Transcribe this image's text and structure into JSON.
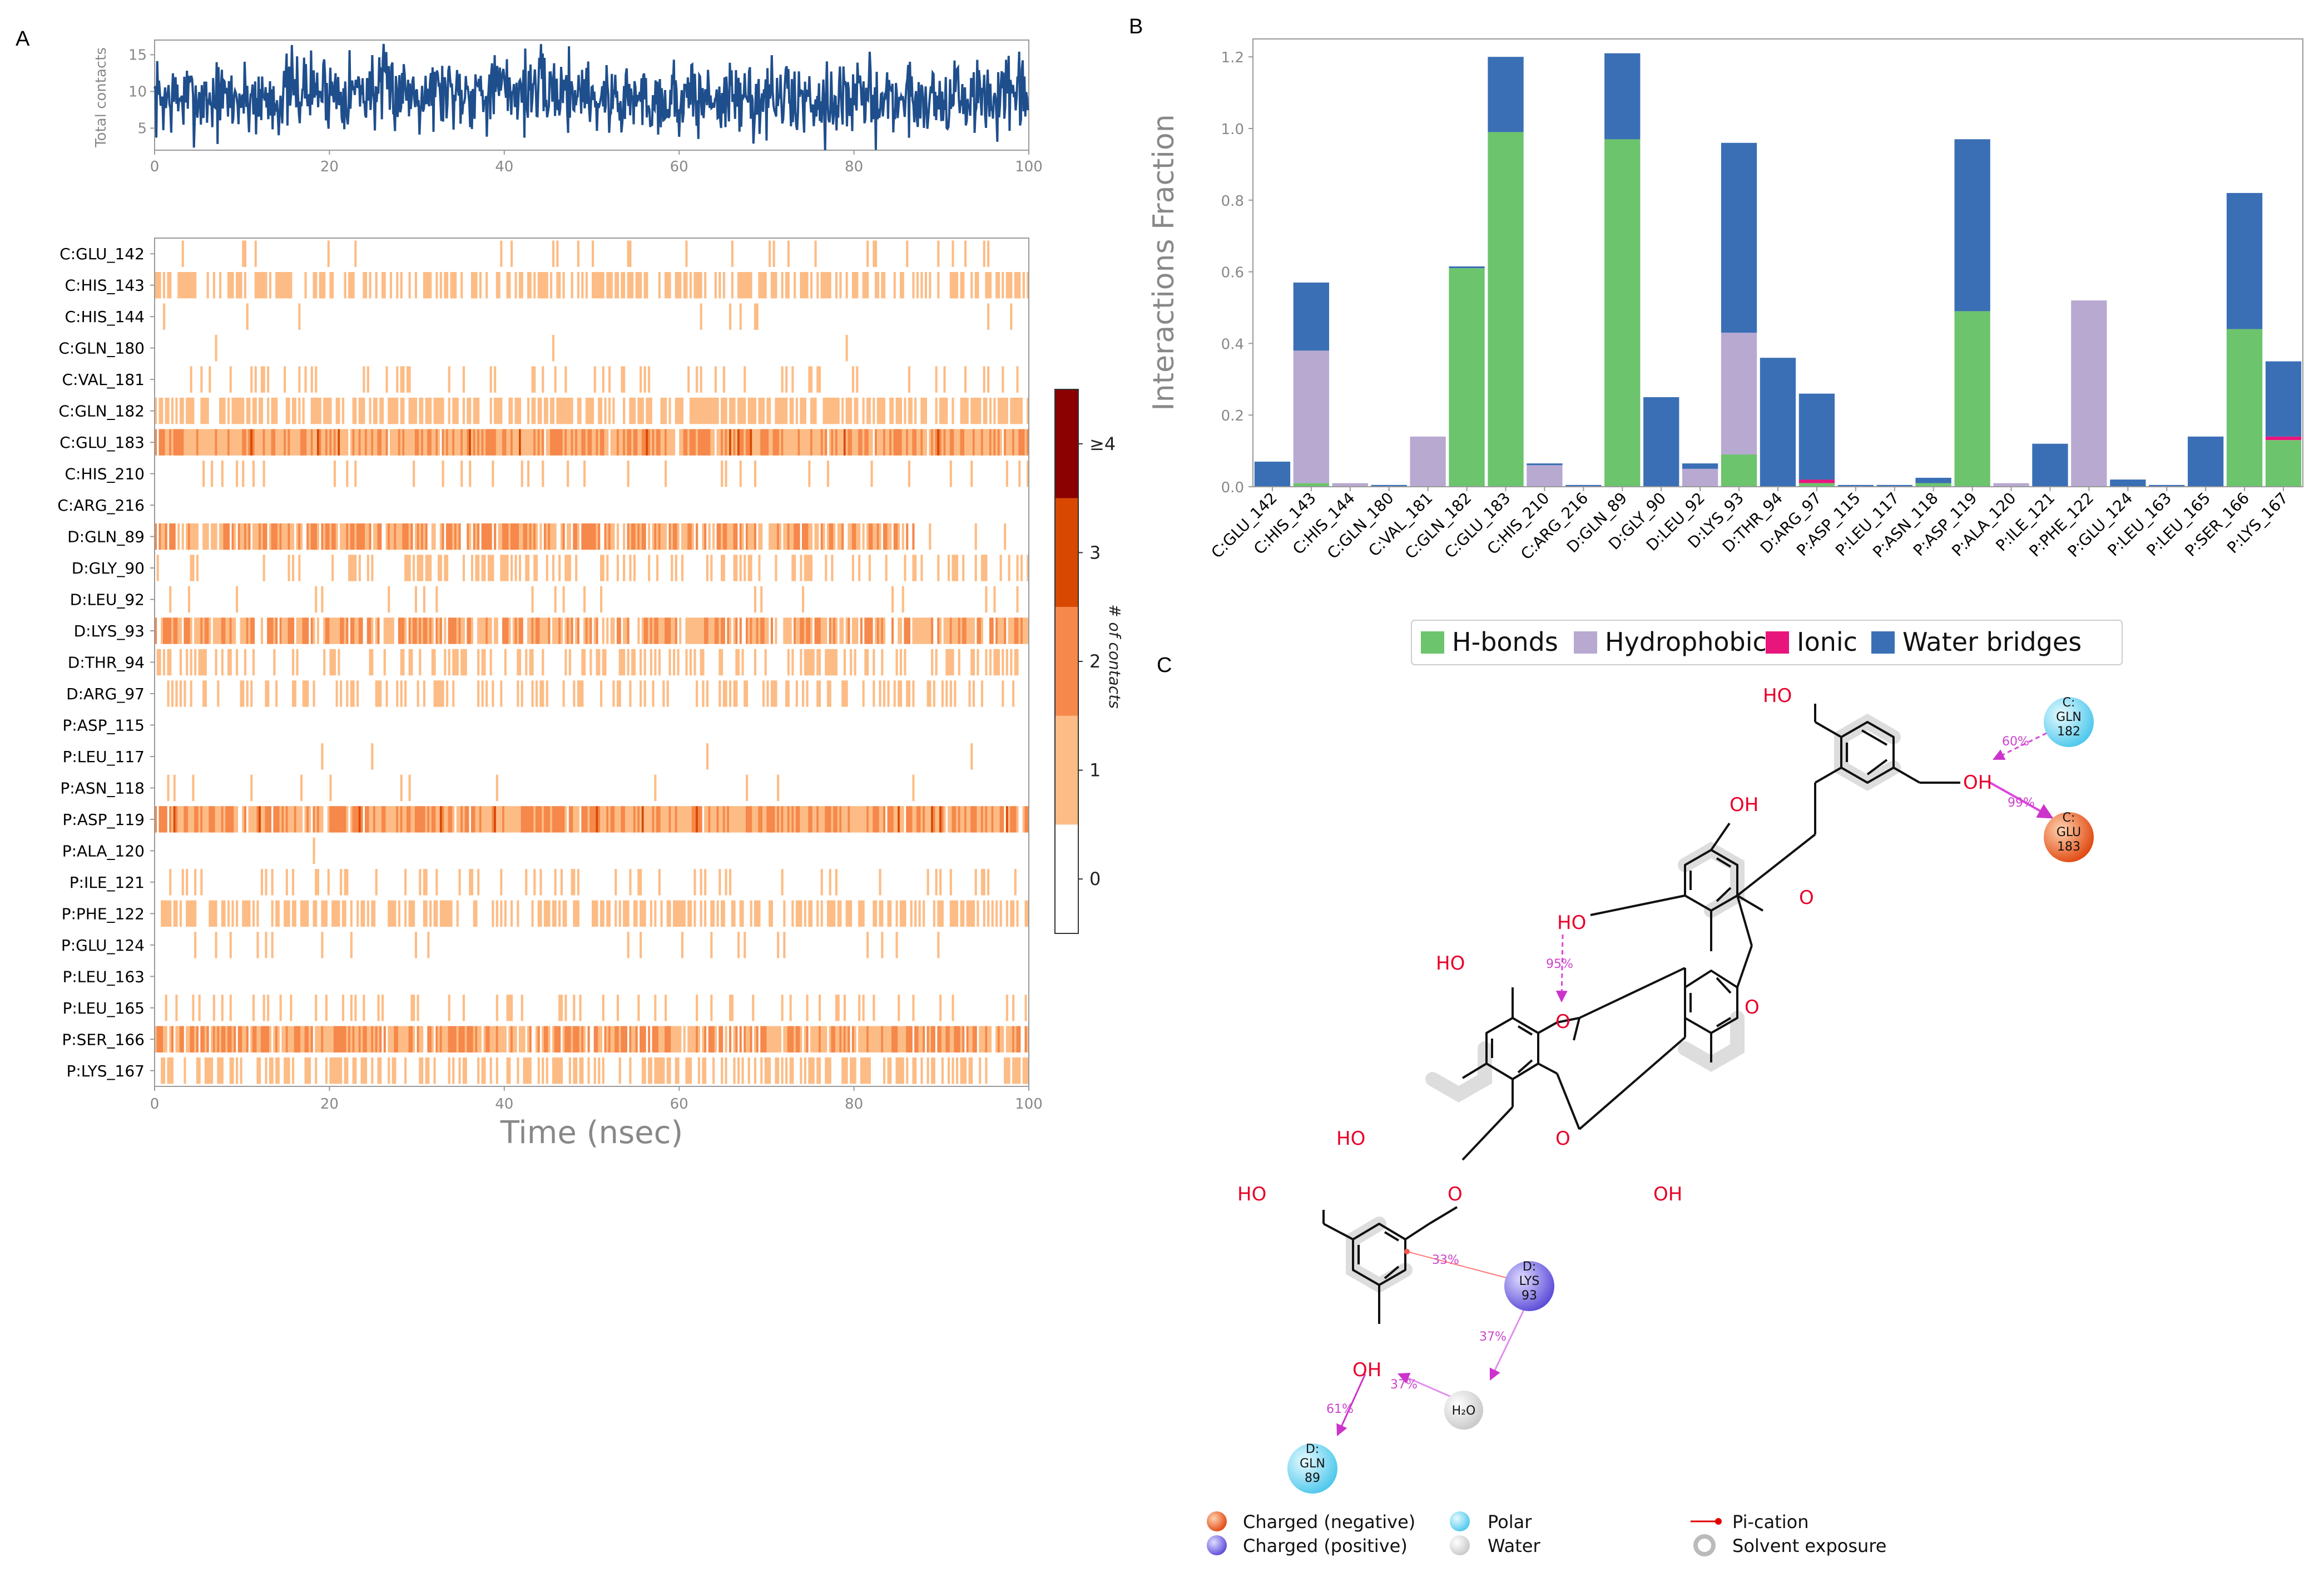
{
  "panels": {
    "a": "A",
    "b": "B",
    "c": "C"
  },
  "colors": {
    "line": "#1f4e8c",
    "hbonds": "#6cc46c",
    "hydrophobic": "#b8a9d1",
    "ionic": "#e8157d",
    "water": "#3a6fb5",
    "heat": [
      "#ffffff",
      "#fdbc85",
      "#f5884a",
      "#d94801",
      "#8b0000"
    ]
  },
  "chart_data": [
    {
      "type": "line",
      "title": "",
      "ylabel": "Total contacts",
      "xlim": [
        0,
        100
      ],
      "ylim": [
        2,
        17
      ],
      "xticks": [
        "0",
        "20",
        "40",
        "60",
        "80",
        "100"
      ],
      "yticks": [
        "5",
        "10",
        "15"
      ],
      "trace": {
        "mean": 9,
        "min": 2,
        "max": 17
      }
    },
    {
      "type": "heatmap",
      "xlabel": "Time (nsec)",
      "xlim": [
        0,
        100
      ],
      "xticks": [
        "0",
        "20",
        "40",
        "60",
        "80",
        "100"
      ],
      "residues": [
        "C:GLU_142",
        "C:HIS_143",
        "C:HIS_144",
        "C:GLN_180",
        "C:VAL_181",
        "C:GLN_182",
        "C:GLU_183",
        "C:HIS_210",
        "C:ARG_216",
        "D:GLN_89",
        "D:GLY_90",
        "D:LEU_92",
        "D:LYS_93",
        "D:THR_94",
        "D:ARG_97",
        "P:ASP_115",
        "P:LEU_117",
        "P:ASN_118",
        "P:ASP_119",
        "P:ALA_120",
        "P:ILE_121",
        "P:PHE_122",
        "P:GLU_124",
        "P:LEU_163",
        "P:LEU_165",
        "P:SER_166",
        "P:LYS_167"
      ],
      "occupancy": [
        0.08,
        0.5,
        0.02,
        0.01,
        0.15,
        0.6,
        0.98,
        0.07,
        0.0,
        0.75,
        0.3,
        0.07,
        0.8,
        0.35,
        0.3,
        0.0,
        0.01,
        0.04,
        0.95,
        0.01,
        0.15,
        0.5,
        0.06,
        0.0,
        0.15,
        0.85,
        0.45
      ],
      "colorbar": {
        "label": "# of contacts",
        "ticks": [
          "0",
          "1",
          "2",
          "3",
          "≥4"
        ]
      }
    },
    {
      "type": "bar",
      "stacked": true,
      "ylabel": "Interactions Fraction",
      "ylim": [
        0,
        1.25
      ],
      "yticks": [
        "0.0",
        "0.2",
        "0.4",
        "0.6",
        "0.8",
        "1.0",
        "1.2"
      ],
      "categories": [
        "C:GLU_142",
        "C:HIS_143",
        "C:HIS_144",
        "C:GLN_180",
        "C:VAL_181",
        "C:GLN_182",
        "C:GLU_183",
        "C:HIS_210",
        "C:ARG_216",
        "D:GLN_89",
        "D:GLY_90",
        "D:LEU_92",
        "D:LYS_93",
        "D:THR_94",
        "D:ARG_97",
        "P:ASP_115",
        "P:LEU_117",
        "P:ASN_118",
        "P:ASP_119",
        "P:ALA_120",
        "P:ILE_121",
        "P:PHE_122",
        "P:GLU_124",
        "P:LEU_163",
        "P:LEU_165",
        "P:SER_166",
        "P:LYS_167"
      ],
      "series": [
        {
          "name": "H-bonds",
          "values": [
            0,
            0.01,
            0,
            0,
            0,
            0.61,
            0.99,
            0,
            0,
            0.97,
            0,
            0,
            0.09,
            0,
            0.01,
            0,
            0,
            0.01,
            0.49,
            0,
            0,
            0,
            0,
            0,
            0,
            0.44,
            0.13
          ]
        },
        {
          "name": "Hydrophobic",
          "values": [
            0,
            0.37,
            0.01,
            0,
            0.14,
            0,
            0,
            0.06,
            0,
            0,
            0,
            0.05,
            0.34,
            0,
            0,
            0,
            0,
            0,
            0,
            0.01,
            0,
            0.52,
            0,
            0,
            0,
            0,
            0
          ]
        },
        {
          "name": "Ionic",
          "values": [
            0,
            0,
            0,
            0,
            0,
            0,
            0,
            0,
            0,
            0,
            0,
            0,
            0,
            0,
            0.01,
            0,
            0,
            0,
            0,
            0,
            0,
            0,
            0,
            0,
            0,
            0,
            0.01
          ]
        },
        {
          "name": "Water bridges",
          "values": [
            0.07,
            0.19,
            0,
            0.005,
            0,
            0.005,
            0.21,
            0.005,
            0.005,
            0.24,
            0.25,
            0.015,
            0.53,
            0.36,
            0.24,
            0.005,
            0.005,
            0.015,
            0.48,
            0,
            0.12,
            0,
            0.02,
            0.005,
            0.14,
            0.38,
            0.21
          ]
        }
      ],
      "legend": [
        "H-bonds",
        "Hydrophobic",
        "Ionic",
        "Water bridges"
      ]
    },
    {
      "type": "diagram",
      "atoms": {
        "oh": "OH",
        "ho": "HO",
        "o": "O",
        "h2o": "H₂O"
      },
      "residues": [
        {
          "chain": "C:",
          "name": "GLN",
          "num": "182",
          "kind": "Polar"
        },
        {
          "chain": "C:",
          "name": "GLU",
          "num": "183",
          "kind": "Charged (negative)"
        },
        {
          "chain": "D:",
          "name": "LYS",
          "num": "93",
          "kind": "Charged (positive)"
        },
        {
          "chain": "D:",
          "name": "GLN",
          "num": "89",
          "kind": "Polar"
        }
      ],
      "percents": [
        "60%",
        "99%",
        "95%",
        "33%",
        "37%",
        "37%",
        "61%"
      ],
      "legend": [
        "Charged (negative)",
        "Charged (positive)",
        "Polar",
        "Water",
        "Pi-cation",
        "Solvent exposure"
      ]
    }
  ]
}
